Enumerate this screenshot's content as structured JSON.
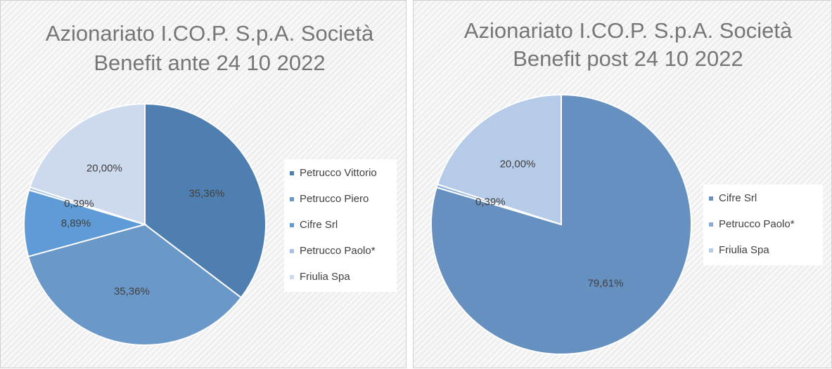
{
  "chart_data": [
    {
      "type": "pie",
      "title": [
        "Azionariato I.CO.P. S.p.A. Società",
        "Benefit ante 24 10 2022"
      ],
      "categories": [
        "Petrucco Vittorio",
        "Petrucco Piero",
        "Cifre Srl",
        "Petrucco Paolo*",
        "Friulia Spa"
      ],
      "values": [
        35.36,
        35.36,
        8.89,
        0.39,
        20.0
      ],
      "value_labels": [
        "35,36%",
        "35,36%",
        "8,89%",
        "0,39%",
        "20,00%"
      ],
      "colors": [
        "#4f7fb0",
        "#6a98c8",
        "#5f9bd6",
        "#a6c2e4",
        "#cdd9ec"
      ],
      "legend": "right"
    },
    {
      "type": "pie",
      "title": [
        "Azionariato I.CO.P. S.p.A. Società",
        "Benefit post 24 10 2022"
      ],
      "categories": [
        "Cifre Srl",
        "Petrucco Paolo*",
        "Friulia Spa"
      ],
      "values": [
        79.61,
        0.39,
        20.0
      ],
      "value_labels": [
        "79,61%",
        "0,39%",
        "20,00%"
      ],
      "colors": [
        "#6690bf",
        "#86acd8",
        "#b6cbe7"
      ],
      "legend": "right"
    }
  ]
}
